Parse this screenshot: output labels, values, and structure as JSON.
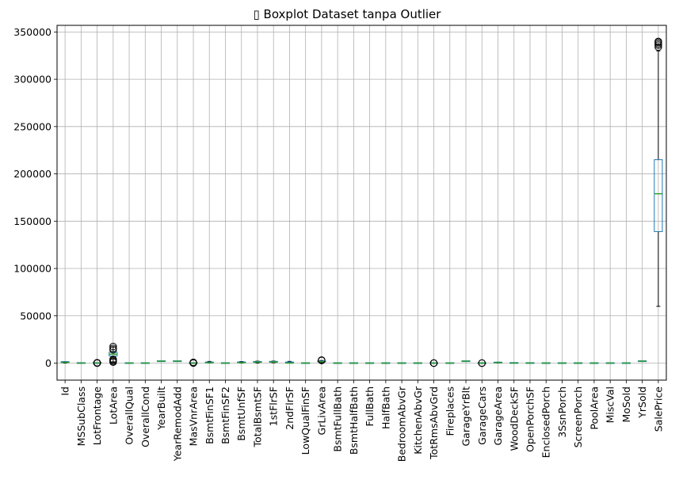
{
  "chart_data": {
    "type": "boxplot",
    "title": "▯ Boxplot Dataset tanpa Outlier",
    "xlabel": "",
    "ylabel": "",
    "ylim": [
      -18000,
      357000
    ],
    "yticks": [
      0,
      50000,
      100000,
      150000,
      200000,
      250000,
      300000,
      350000
    ],
    "grid": true,
    "categories": [
      "Id",
      "MSSubClass",
      "LotFrontage",
      "LotArea",
      "OverallQual",
      "OverallCond",
      "YearBuilt",
      "YearRemodAdd",
      "MasVnrArea",
      "BsmtFinSF1",
      "BsmtFinSF2",
      "BsmtUnfSF",
      "TotalBsmtSF",
      "1stFlrSF",
      "2ndFlrSF",
      "LowQualFinSF",
      "GrLivArea",
      "BsmtFullBath",
      "BsmtHalfBath",
      "FullBath",
      "HalfBath",
      "BedroomAbvGr",
      "KitchenAbvGr",
      "TotRmsAbvGrd",
      "Fireplaces",
      "GarageYrBlt",
      "GarageCars",
      "GarageArea",
      "WoodDeckSF",
      "OpenPorchSF",
      "EnclosedPorch",
      "3SsnPorch",
      "ScreenPorch",
      "PoolArea",
      "MiscVal",
      "MoSold",
      "YrSold",
      "SalePrice"
    ],
    "boxes": [
      {
        "whislo": 1,
        "q1": 365,
        "med": 730,
        "q3": 1095,
        "whishi": 1460,
        "fliers": []
      },
      {
        "whislo": 20,
        "q1": 20,
        "med": 50,
        "q3": 70,
        "whishi": 120,
        "fliers": []
      },
      {
        "whislo": 30,
        "q1": 60,
        "med": 69,
        "q3": 80,
        "whishi": 110,
        "fliers": [
          0,
          150,
          200,
          300,
          400
        ]
      },
      {
        "whislo": 1300,
        "q1": 7500,
        "med": 9400,
        "q3": 11500,
        "whishi": 17000,
        "fliers": [
          1000,
          2000,
          3000,
          4000,
          14000,
          15500,
          17500
        ]
      },
      {
        "whislo": 4,
        "q1": 5,
        "med": 6,
        "q3": 7,
        "whishi": 10,
        "fliers": []
      },
      {
        "whislo": 4,
        "q1": 5,
        "med": 5,
        "q3": 6,
        "whishi": 8,
        "fliers": []
      },
      {
        "whislo": 1885,
        "q1": 1954,
        "med": 1973,
        "q3": 2000,
        "whishi": 2010,
        "fliers": []
      },
      {
        "whislo": 1950,
        "q1": 1967,
        "med": 1994,
        "q3": 2004,
        "whishi": 2010,
        "fliers": []
      },
      {
        "whislo": 0,
        "q1": 0,
        "med": 0,
        "q3": 0,
        "whishi": 0,
        "fliers": [
          80,
          200,
          400,
          600,
          800
        ]
      },
      {
        "whislo": 0,
        "q1": 0,
        "med": 383,
        "q3": 712,
        "whishi": 1780,
        "fliers": []
      },
      {
        "whislo": 0,
        "q1": 0,
        "med": 0,
        "q3": 0,
        "whishi": 0,
        "fliers": []
      },
      {
        "whislo": 0,
        "q1": 223,
        "med": 477,
        "q3": 808,
        "whishi": 1680,
        "fliers": []
      },
      {
        "whislo": 100,
        "q1": 795,
        "med": 991,
        "q3": 1298,
        "whishi": 2050,
        "fliers": []
      },
      {
        "whislo": 334,
        "q1": 882,
        "med": 1087,
        "q3": 1391,
        "whishi": 2160,
        "fliers": []
      },
      {
        "whislo": 0,
        "q1": 0,
        "med": 0,
        "q3": 728,
        "whishi": 1800,
        "fliers": []
      },
      {
        "whislo": 0,
        "q1": 0,
        "med": 0,
        "q3": 0,
        "whishi": 0,
        "fliers": []
      },
      {
        "whislo": 334,
        "q1": 1129,
        "med": 1464,
        "q3": 1776,
        "whishi": 2730,
        "fliers": [
          2800,
          3000,
          3200
        ]
      },
      {
        "whislo": 0,
        "q1": 0,
        "med": 0,
        "q3": 1,
        "whishi": 2,
        "fliers": []
      },
      {
        "whislo": 0,
        "q1": 0,
        "med": 0,
        "q3": 0,
        "whishi": 0,
        "fliers": []
      },
      {
        "whislo": 0,
        "q1": 1,
        "med": 2,
        "q3": 2,
        "whishi": 3,
        "fliers": []
      },
      {
        "whislo": 0,
        "q1": 0,
        "med": 0,
        "q3": 1,
        "whishi": 2,
        "fliers": []
      },
      {
        "whislo": 1,
        "q1": 2,
        "med": 3,
        "q3": 3,
        "whishi": 4,
        "fliers": []
      },
      {
        "whislo": 1,
        "q1": 1,
        "med": 1,
        "q3": 1,
        "whishi": 1,
        "fliers": []
      },
      {
        "whislo": 3,
        "q1": 5,
        "med": 6,
        "q3": 7,
        "whishi": 10,
        "fliers": [
          2,
          11,
          12
        ]
      },
      {
        "whislo": 0,
        "q1": 0,
        "med": 1,
        "q3": 1,
        "whishi": 2,
        "fliers": []
      },
      {
        "whislo": 1900,
        "q1": 1961,
        "med": 1980,
        "q3": 2002,
        "whishi": 2010,
        "fliers": []
      },
      {
        "whislo": 1,
        "q1": 1,
        "med": 2,
        "q3": 2,
        "whishi": 3,
        "fliers": [
          0,
          4
        ]
      },
      {
        "whislo": 0,
        "q1": 334,
        "med": 480,
        "q3": 576,
        "whishi": 936,
        "fliers": []
      },
      {
        "whislo": 0,
        "q1": 0,
        "med": 0,
        "q3": 168,
        "whishi": 420,
        "fliers": []
      },
      {
        "whislo": 0,
        "q1": 0,
        "med": 25,
        "q3": 68,
        "whishi": 170,
        "fliers": []
      },
      {
        "whislo": 0,
        "q1": 0,
        "med": 0,
        "q3": 0,
        "whishi": 0,
        "fliers": []
      },
      {
        "whislo": 0,
        "q1": 0,
        "med": 0,
        "q3": 0,
        "whishi": 0,
        "fliers": []
      },
      {
        "whislo": 0,
        "q1": 0,
        "med": 0,
        "q3": 0,
        "whishi": 0,
        "fliers": []
      },
      {
        "whislo": 0,
        "q1": 0,
        "med": 0,
        "q3": 0,
        "whishi": 0,
        "fliers": []
      },
      {
        "whislo": 0,
        "q1": 0,
        "med": 0,
        "q3": 0,
        "whishi": 0,
        "fliers": []
      },
      {
        "whislo": 1,
        "q1": 5,
        "med": 6,
        "q3": 8,
        "whishi": 12,
        "fliers": []
      },
      {
        "whislo": 2006,
        "q1": 2007,
        "med": 2008,
        "q3": 2009,
        "whishi": 2010,
        "fliers": []
      },
      {
        "whislo": 60000,
        "q1": 139000,
        "med": 179000,
        "q3": 215000,
        "whishi": 330000,
        "fliers": [
          334000,
          336000,
          337500,
          339000,
          340000
        ]
      }
    ],
    "colors": {
      "box": "#1f77b4",
      "median": "#2ca02c",
      "whisker": "#000000",
      "flier": "#000000",
      "grid": "#b0b0b0",
      "axes": "#000000"
    }
  }
}
